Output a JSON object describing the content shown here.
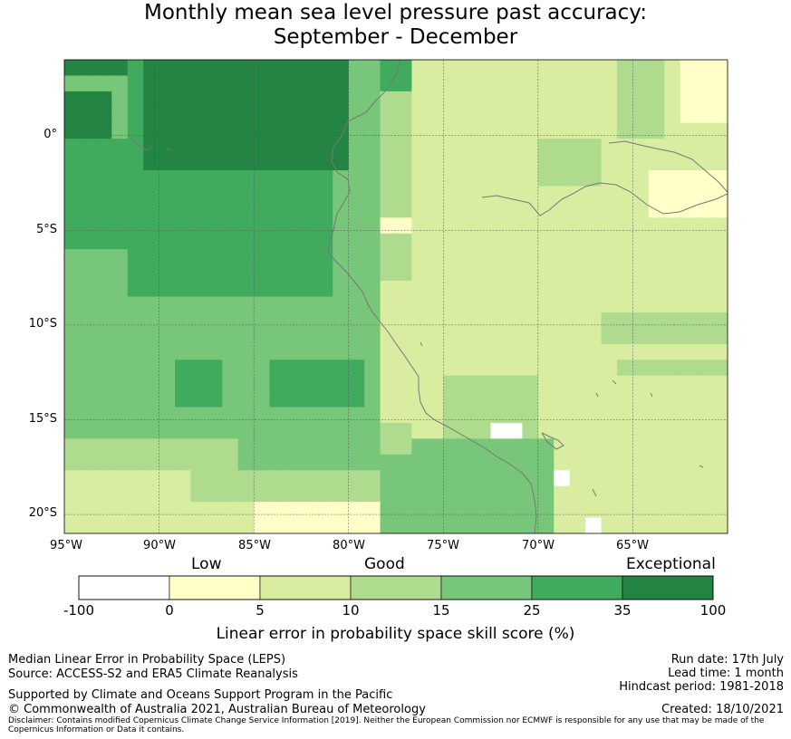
{
  "title": {
    "line1": "Monthly mean sea level pressure past accuracy:",
    "line2": "September - December"
  },
  "axes": {
    "lat_labels": [
      "0°",
      "5°S",
      "10°S",
      "15°S",
      "20°S"
    ],
    "lon_labels": [
      "95°W",
      "90°W",
      "85°W",
      "80°W",
      "75°W",
      "70°W",
      "65°W"
    ]
  },
  "map": {
    "extent_lon": [
      -95,
      -60
    ],
    "extent_lat": [
      -21,
      4
    ],
    "grid_on": true
  },
  "colorbar": {
    "category_labels": {
      "low": "Low",
      "good": "Good",
      "exceptional": "Exceptional"
    },
    "ticks": [
      "-100",
      "0",
      "5",
      "10",
      "15",
      "25",
      "35",
      "100"
    ],
    "colors": [
      "#ffffff",
      "#ffffc7",
      "#d8eda0",
      "#aedb8e",
      "#78c679",
      "#41ab5d",
      "#238443"
    ],
    "label": "Linear error in probability space skill score (%)"
  },
  "footer": {
    "left1": "Median Linear Error in Probability Space (LEPS)",
    "left2": "Source: ACCESS-S2 and ERA5 Climate Reanalysis",
    "left3": "Supported by Climate and Oceans Support Program in the Pacific",
    "left4": "© Commonwealth of Australia 2021, Australian Bureau of Meteorology",
    "right1": "Run date: 17th July",
    "right2": "Lead time: 1 month",
    "right3": "Hindcast period: 1981-2018",
    "right4": "Created: 18/10/2021",
    "disclaimer": "Disclaimer: Contains modified Copernicus Climate Change Service Information [2019]. Neither the European Commission nor ECMWF is responsible for any use that may be made of the Copernicus Information or Data it contains."
  }
}
